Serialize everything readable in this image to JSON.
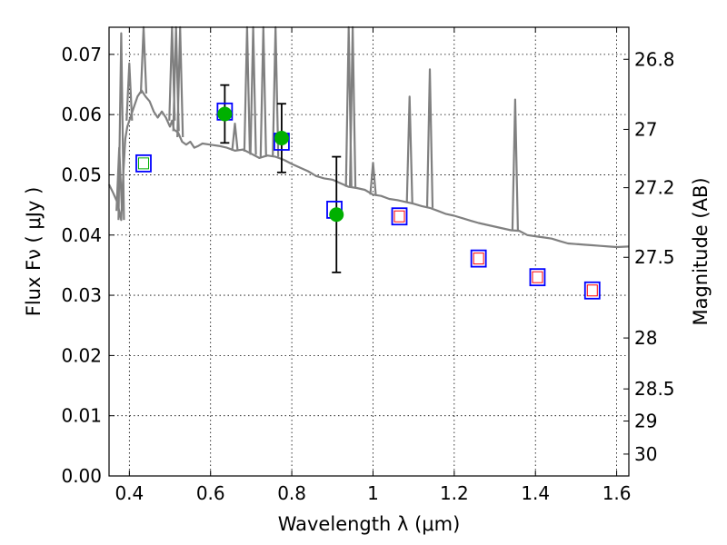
{
  "chart_data": {
    "type": "scatter",
    "xlabel": "Wavelength  λ (μm)",
    "ylabel": "Flux  Fν  ( μJy )",
    "ylabel_right": "Magnitude (AB)",
    "xlim": [
      0.35,
      1.63
    ],
    "ylim": [
      0,
      0.0745
    ],
    "grid": true,
    "x_ticks": [
      0.4,
      0.6,
      0.8,
      1.0,
      1.2,
      1.4,
      1.6
    ],
    "x_tick_labels": [
      "0.4",
      "0.6",
      "0.8",
      "1",
      "1.2",
      "1.4",
      "1.6"
    ],
    "y_ticks": [
      0.0,
      0.01,
      0.02,
      0.03,
      0.04,
      0.05,
      0.06,
      0.07
    ],
    "y_tick_labels": [
      "0.00",
      "0.01",
      "0.02",
      "0.03",
      "0.04",
      "0.05",
      "0.06",
      "0.07"
    ],
    "right_ticks": [
      {
        "mag": 26.8,
        "label": "26.8"
      },
      {
        "mag": 27.0,
        "label": "27"
      },
      {
        "mag": 27.2,
        "label": "27.2"
      },
      {
        "mag": 27.5,
        "label": "27.5"
      },
      {
        "mag": 28.0,
        "label": "28"
      },
      {
        "mag": 28.5,
        "label": "28.5"
      },
      {
        "mag": 29.0,
        "label": "29"
      },
      {
        "mag": 30.0,
        "label": "30"
      }
    ],
    "colors": {
      "spectrum": "#808080",
      "model_box": "#0000ff",
      "observed_point": "#00b000",
      "inner_red": "#ff0000",
      "inner_green": "#00b000",
      "errorbar": "#000000"
    },
    "series": [
      {
        "kind": "spectrum_line",
        "x": [
          0.35,
          0.36,
          0.37,
          0.38,
          0.385,
          0.39,
          0.395,
          0.4,
          0.41,
          0.42,
          0.43,
          0.44,
          0.45,
          0.46,
          0.47,
          0.48,
          0.49,
          0.5,
          0.505,
          0.51,
          0.52,
          0.53,
          0.54,
          0.55,
          0.56,
          0.57,
          0.58,
          0.6,
          0.62,
          0.64,
          0.66,
          0.68,
          0.7,
          0.72,
          0.74,
          0.76,
          0.78,
          0.8,
          0.82,
          0.84,
          0.86,
          0.88,
          0.9,
          0.92,
          0.94,
          0.96,
          0.98,
          1.0,
          1.02,
          1.04,
          1.06,
          1.08,
          1.1,
          1.12,
          1.14,
          1.16,
          1.18,
          1.2,
          1.22,
          1.24,
          1.26,
          1.28,
          1.3,
          1.32,
          1.34,
          1.36,
          1.38,
          1.4,
          1.42,
          1.44,
          1.46,
          1.48,
          1.5,
          1.52,
          1.54,
          1.56,
          1.58,
          1.6,
          1.63
        ],
        "y": [
          0.0484,
          0.047,
          0.0455,
          0.0425,
          0.05,
          0.056,
          0.058,
          0.059,
          0.061,
          0.063,
          0.064,
          0.063,
          0.0622,
          0.0605,
          0.0595,
          0.0605,
          0.0595,
          0.058,
          0.059,
          0.0575,
          0.057,
          0.0555,
          0.055,
          0.0555,
          0.0545,
          0.0548,
          0.0552,
          0.055,
          0.0548,
          0.0545,
          0.054,
          0.0542,
          0.0535,
          0.0528,
          0.0532,
          0.053,
          0.0525,
          0.0518,
          0.0512,
          0.0506,
          0.0498,
          0.0494,
          0.0492,
          0.0486,
          0.048,
          0.0478,
          0.0475,
          0.0467,
          0.0465,
          0.046,
          0.0458,
          0.0455,
          0.0452,
          0.0448,
          0.0445,
          0.044,
          0.0435,
          0.0432,
          0.0428,
          0.0424,
          0.042,
          0.0417,
          0.0414,
          0.0411,
          0.0408,
          0.0407,
          0.04,
          0.0398,
          0.0396,
          0.0394,
          0.039,
          0.0386,
          0.0385,
          0.0384,
          0.0383,
          0.0382,
          0.0381,
          0.038,
          0.0381
        ]
      },
      {
        "kind": "emission_lines",
        "lines": [
          {
            "x": 0.375,
            "peak": 0.0545
          },
          {
            "x": 0.38,
            "peak": 0.0735
          },
          {
            "x": 0.4,
            "peak": 0.0685
          },
          {
            "x": 0.435,
            "peak": 0.0745
          },
          {
            "x": 0.505,
            "peak": 0.0745
          },
          {
            "x": 0.515,
            "peak": 0.0745
          },
          {
            "x": 0.525,
            "peak": 0.0745
          },
          {
            "x": 0.66,
            "peak": 0.0585
          },
          {
            "x": 0.69,
            "peak": 0.0745
          },
          {
            "x": 0.705,
            "peak": 0.0745
          },
          {
            "x": 0.73,
            "peak": 0.0745
          },
          {
            "x": 0.76,
            "peak": 0.0745
          },
          {
            "x": 0.94,
            "peak": 0.0745
          },
          {
            "x": 0.95,
            "peak": 0.0745
          },
          {
            "x": 1.0,
            "peak": 0.052
          },
          {
            "x": 1.09,
            "peak": 0.063
          },
          {
            "x": 1.14,
            "peak": 0.0675
          },
          {
            "x": 1.35,
            "peak": 0.0625
          }
        ]
      },
      {
        "kind": "model_boxes",
        "points": [
          {
            "x": 0.435,
            "y": 0.0519,
            "inner": "green"
          },
          {
            "x": 0.635,
            "y": 0.0605,
            "inner": "none"
          },
          {
            "x": 0.775,
            "y": 0.0555,
            "inner": "none"
          },
          {
            "x": 0.905,
            "y": 0.0442,
            "inner": "none"
          },
          {
            "x": 1.065,
            "y": 0.0431,
            "inner": "red"
          },
          {
            "x": 1.26,
            "y": 0.0361,
            "inner": "red"
          },
          {
            "x": 1.405,
            "y": 0.033,
            "inner": "red"
          },
          {
            "x": 1.54,
            "y": 0.0308,
            "inner": "red"
          }
        ]
      },
      {
        "kind": "observed_points",
        "points": [
          {
            "x": 0.635,
            "y": 0.0601,
            "err": 0.0048
          },
          {
            "x": 0.775,
            "y": 0.0561,
            "err": 0.0057
          },
          {
            "x": 0.91,
            "y": 0.0434,
            "err": 0.0096
          }
        ]
      }
    ]
  }
}
